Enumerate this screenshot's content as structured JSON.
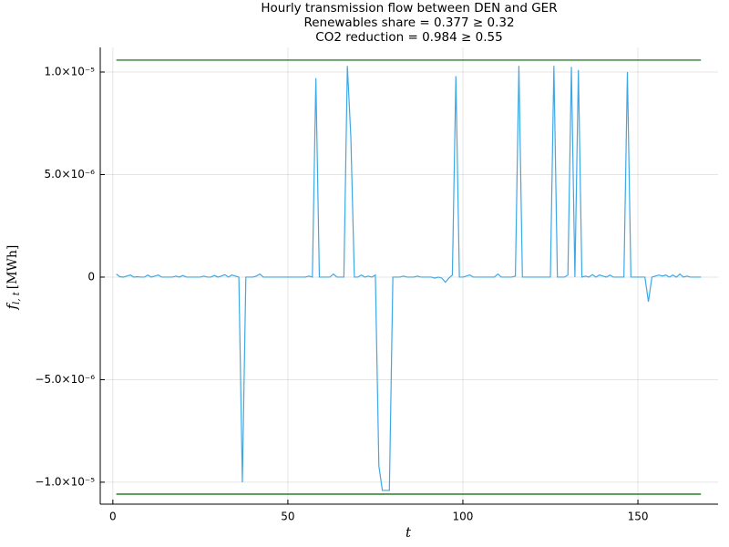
{
  "chart_data": {
    "type": "line",
    "title": [
      "Hourly transmission flow between DEN and GER",
      "Renewables share = 0.377 ≥ 0.32",
      "CO2 reduction = 0.984 ≥ 0.55"
    ],
    "xlabel": "t",
    "ylabel": "f",
    "ylabel_sub": "l, t",
    "ylabel_unit": "[MWh]",
    "xlim": [
      -3.6,
      172.9
    ],
    "ylim": [
      -1.107e-05,
      1.12e-05
    ],
    "xticks": [
      0,
      50,
      100,
      150
    ],
    "yticks": [
      {
        "value": -1e-05,
        "label": "−1.0×10⁻⁵"
      },
      {
        "value": -5e-06,
        "label": "−5.0×10⁻⁶"
      },
      0,
      {
        "value": 5e-06,
        "label": "5.0×10⁻⁶"
      },
      {
        "value": 1e-05,
        "label": "1.0×10⁻⁵"
      }
    ],
    "grid": true,
    "series": [
      {
        "color": "#3ea8e5",
        "x": [
          1,
          2,
          3,
          4,
          5,
          6,
          7,
          8,
          9,
          10,
          11,
          12,
          13,
          14,
          15,
          16,
          17,
          18,
          19,
          20,
          21,
          22,
          23,
          24,
          25,
          26,
          27,
          28,
          29,
          30,
          31,
          32,
          33,
          34,
          35,
          36,
          37,
          38,
          39,
          40,
          41,
          42,
          43,
          44,
          45,
          46,
          47,
          48,
          49,
          50,
          51,
          52,
          53,
          54,
          55,
          56,
          57,
          58,
          59,
          60,
          61,
          62,
          63,
          64,
          65,
          66,
          67,
          68,
          69,
          70,
          71,
          72,
          73,
          74,
          75,
          76,
          77,
          78,
          79,
          80,
          81,
          82,
          83,
          84,
          85,
          86,
          87,
          88,
          89,
          90,
          91,
          92,
          93,
          94,
          95,
          96,
          97,
          98,
          99,
          100,
          101,
          102,
          103,
          104,
          105,
          106,
          107,
          108,
          109,
          110,
          111,
          112,
          113,
          114,
          115,
          116,
          117,
          118,
          119,
          120,
          121,
          122,
          123,
          124,
          125,
          126,
          127,
          128,
          129,
          130,
          131,
          132,
          133,
          134,
          135,
          136,
          137,
          138,
          139,
          140,
          141,
          142,
          143,
          144,
          145,
          146,
          147,
          148,
          149,
          150,
          151,
          152,
          153,
          154,
          155,
          156,
          157,
          158,
          159,
          160,
          161,
          162,
          163,
          164,
          165,
          166,
          167,
          168
        ],
        "values": [
          1.5e-07,
          2e-08,
          0,
          5e-08,
          1e-07,
          0,
          2e-08,
          0,
          0,
          1e-07,
          0,
          5e-08,
          1e-07,
          0,
          0,
          0,
          0,
          5e-08,
          0,
          8e-08,
          0,
          0,
          0,
          0,
          0,
          5e-08,
          0,
          0,
          8e-08,
          0,
          5e-08,
          1.2e-07,
          0,
          1e-07,
          5e-08,
          0,
          -1e-05,
          0,
          0,
          0,
          5e-08,
          1.5e-07,
          0,
          0,
          0,
          0,
          0,
          0,
          0,
          0,
          0,
          0,
          0,
          0,
          0,
          5e-08,
          0,
          9.7e-06,
          0,
          0,
          0,
          0,
          1.5e-07,
          0,
          0,
          0,
          1.03e-05,
          6.8e-06,
          0,
          0,
          1e-07,
          0,
          5e-08,
          0,
          1e-07,
          -9.2e-06,
          -1.04e-05,
          -1.04e-05,
          -1.04e-05,
          0,
          0,
          0,
          5e-08,
          0,
          0,
          0,
          5e-08,
          0,
          0,
          0,
          0,
          -5e-08,
          0,
          -5e-08,
          -2.5e-07,
          -5e-08,
          1e-07,
          9.8e-06,
          0,
          0,
          5e-08,
          1e-07,
          0,
          0,
          0,
          0,
          0,
          0,
          0,
          1.5e-07,
          0,
          0,
          0,
          0,
          5e-08,
          1.03e-05,
          0,
          0,
          0,
          0,
          0,
          0,
          0,
          0,
          0,
          1.03e-05,
          0,
          0,
          0,
          1e-07,
          1.025e-05,
          0,
          1.01e-05,
          0,
          5e-08,
          0,
          1.2e-07,
          0,
          1e-07,
          5e-08,
          0,
          1e-07,
          0,
          0,
          0,
          0,
          1e-05,
          0,
          0,
          0,
          0,
          0,
          -1.2e-06,
          0,
          5e-08,
          1e-07,
          5e-08,
          1e-07,
          0,
          1e-07,
          0,
          1.5e-07,
          0,
          5e-08,
          0,
          0,
          0,
          0
        ]
      },
      {
        "color": "#006400",
        "x": [
          1,
          168
        ],
        "values": [
          1.058e-05,
          1.058e-05
        ]
      },
      {
        "color": "#006400",
        "x": [
          1,
          168
        ],
        "values": [
          -1.058e-05,
          -1.058e-05
        ]
      }
    ]
  }
}
